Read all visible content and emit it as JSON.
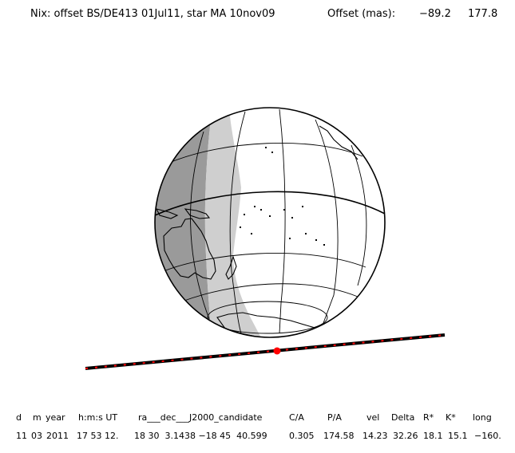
{
  "header": {
    "title": "Nix: offset BS/DE413 01Jul11, star MA 10nov09",
    "offset_label": "Offset (mas):",
    "offset_x": "−89.2",
    "offset_y": "177.8"
  },
  "colors": {
    "globe_fill": "#ffffff",
    "night_dark": "#9a9a9a",
    "night_light": "#cfcfcf",
    "outline": "#000000",
    "chord_line": "#000000",
    "chord_ticks": "#ff0000",
    "center_dot": "#ff0000"
  },
  "event_table": {
    "headers": [
      "d",
      "m",
      "year",
      "h:m:s UT",
      "ra___dec___J2000_candidate",
      "C/A",
      "P/A",
      "vel",
      "Delta",
      "R*",
      "K*",
      "long"
    ],
    "values": [
      "11",
      "03",
      "2011",
      "17 53 12.",
      "18 30  3.1438 −18 45  40.599",
      "0.305",
      "174.58",
      "14.23",
      "32.26",
      "18.1",
      "15.1",
      "−160."
    ]
  }
}
